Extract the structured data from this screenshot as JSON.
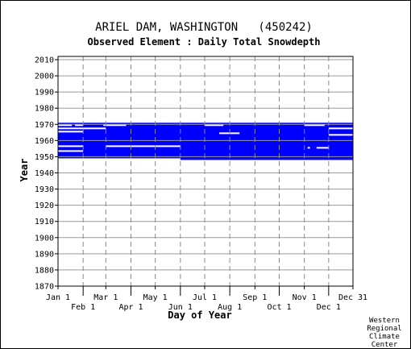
{
  "chart_data": {
    "type": "heatmap",
    "title": "ARIEL DAM, WASHINGTON   (450242)",
    "subtitle": "Observed Element : Daily Total Snowdepth",
    "xlabel": "Day of Year",
    "ylabel": "Year",
    "xlim": [
      1,
      365
    ],
    "ylim": [
      1870,
      2012
    ],
    "x_ticks_upper": [
      {
        "label": "Jan 1",
        "day": 1
      },
      {
        "label": "Mar 1",
        "day": 60
      },
      {
        "label": "May 1",
        "day": 121
      },
      {
        "label": "Jul 1",
        "day": 182
      },
      {
        "label": "Sep 1",
        "day": 244
      },
      {
        "label": "Nov 1",
        "day": 305
      },
      {
        "label": "Dec 31",
        "day": 365
      }
    ],
    "x_ticks_lower": [
      {
        "label": "Feb 1",
        "day": 32
      },
      {
        "label": "Apr 1",
        "day": 91
      },
      {
        "label": "Jun 1",
        "day": 152
      },
      {
        "label": "Aug 1",
        "day": 213
      },
      {
        "label": "Oct 1",
        "day": 274
      },
      {
        "label": "Dec 1",
        "day": 335
      }
    ],
    "y_ticks": [
      1870,
      1880,
      1890,
      1900,
      1910,
      1920,
      1930,
      1940,
      1950,
      1960,
      1970,
      1980,
      1990,
      2000,
      2010
    ],
    "grid": true,
    "series": [
      {
        "color": "#0000ff",
        "coverage": [
          {
            "year_start": 1949,
            "year_end": 1971,
            "day_start": 1,
            "day_end": 365
          },
          {
            "year_start": 1948,
            "year_end": 1949,
            "day_start": 152,
            "day_end": 365
          }
        ],
        "missing": [
          {
            "year": 1969,
            "day_start": 1,
            "day_end": 18
          },
          {
            "year": 1969,
            "day_start": 22,
            "day_end": 32
          },
          {
            "year": 1969,
            "day_start": 57,
            "day_end": 85
          },
          {
            "year": 1969,
            "day_start": 182,
            "day_end": 205
          },
          {
            "year": 1969,
            "day_start": 305,
            "day_end": 330
          },
          {
            "year": 1967,
            "day_start": 1,
            "day_end": 32
          },
          {
            "year": 1967,
            "day_start": 32,
            "day_end": 60
          },
          {
            "year": 1967,
            "day_start": 335,
            "day_end": 365
          },
          {
            "year": 1965,
            "day_start": 1,
            "day_end": 32
          },
          {
            "year": 1964,
            "day_start": 200,
            "day_end": 225
          },
          {
            "year": 1963,
            "day_start": 335,
            "day_end": 365
          },
          {
            "year": 1956,
            "day_start": 1,
            "day_end": 32
          },
          {
            "year": 1956,
            "day_start": 60,
            "day_end": 152
          },
          {
            "year": 1955,
            "day_start": 309,
            "day_end": 312
          },
          {
            "year": 1955,
            "day_start": 320,
            "day_end": 335
          },
          {
            "year": 1953,
            "day_start": 1,
            "day_end": 32
          }
        ]
      }
    ]
  },
  "credit": [
    "Western",
    "Regional",
    "Climate",
    "Center"
  ]
}
